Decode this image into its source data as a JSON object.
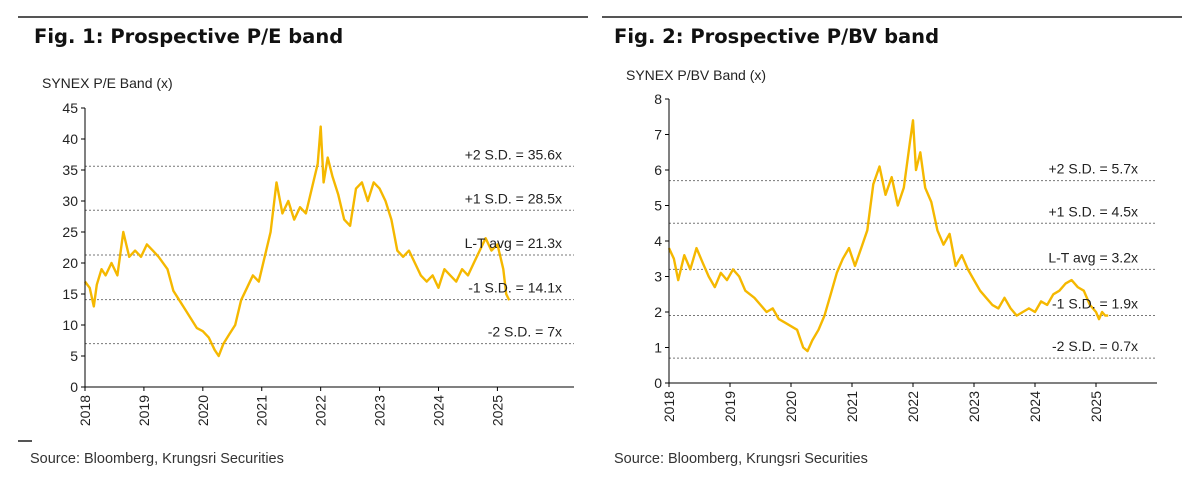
{
  "colors": {
    "series": "#F5B800",
    "band": "#777777",
    "axis": "#000000"
  },
  "figures": [
    {
      "title": "Fig. 1:  Prospective P/E band",
      "source": "Source: Bloomberg, Krungsri Securities"
    },
    {
      "title": "Fig. 2: Prospective P/BV band",
      "source": "Source: Bloomberg, Krungsri Securities"
    }
  ],
  "chart_data": [
    {
      "type": "line",
      "title": "Fig. 1:  Prospective P/E band",
      "ylabel": "SYNEX P/E  Band (x)",
      "xlabel": "",
      "ylim": [
        0,
        45
      ],
      "yticks": [
        "0",
        "5",
        "10",
        "15",
        "20",
        "25",
        "30",
        "35",
        "40",
        "45"
      ],
      "xlim": [
        2018,
        2026.3
      ],
      "xticks": [
        "2018",
        "2019",
        "2020",
        "2021",
        "2022",
        "2023",
        "2024",
        "2025"
      ],
      "grid": false,
      "bands": [
        {
          "label": "+2 S.D. = 35.6x",
          "value": 35.6
        },
        {
          "label": "+1 S.D. = 28.5x",
          "value": 28.5
        },
        {
          "label": "L-T avg = 21.3x",
          "value": 21.3
        },
        {
          "label": "-1 S.D. = 14.1x",
          "value": 14.1
        },
        {
          "label": "-2 S.D. = 7x",
          "value": 7
        }
      ],
      "series": [
        {
          "name": "P/E",
          "x": [
            2018.0,
            2018.08,
            2018.15,
            2018.2,
            2018.28,
            2018.35,
            2018.45,
            2018.55,
            2018.65,
            2018.75,
            2018.85,
            2018.95,
            2019.05,
            2019.15,
            2019.25,
            2019.4,
            2019.5,
            2019.6,
            2019.7,
            2019.8,
            2019.9,
            2020.0,
            2020.1,
            2020.2,
            2020.27,
            2020.35,
            2020.45,
            2020.55,
            2020.65,
            2020.75,
            2020.85,
            2020.95,
            2021.05,
            2021.15,
            2021.25,
            2021.35,
            2021.45,
            2021.55,
            2021.65,
            2021.75,
            2021.85,
            2021.95,
            2022.0,
            2022.05,
            2022.12,
            2022.2,
            2022.3,
            2022.4,
            2022.5,
            2022.6,
            2022.7,
            2022.8,
            2022.9,
            2023.0,
            2023.1,
            2023.2,
            2023.3,
            2023.4,
            2023.5,
            2023.6,
            2023.7,
            2023.8,
            2023.9,
            2024.0,
            2024.1,
            2024.2,
            2024.3,
            2024.4,
            2024.5,
            2024.6,
            2024.7,
            2024.8,
            2024.9,
            2025.0,
            2025.05,
            2025.1,
            2025.15,
            2025.2
          ],
          "values": [
            17,
            16,
            13,
            16.5,
            19,
            18,
            20,
            18,
            25,
            21,
            22,
            21,
            23,
            22,
            21,
            19,
            15.5,
            14,
            12.5,
            11,
            9.5,
            9,
            8,
            6,
            5,
            7,
            8.5,
            10,
            14,
            16,
            18,
            17,
            21,
            25,
            33,
            28,
            30,
            27,
            29,
            28,
            32,
            36,
            42,
            33,
            37,
            34,
            31,
            27,
            26,
            32,
            33,
            30,
            33,
            32,
            30,
            27,
            22,
            21,
            22,
            20,
            18,
            17,
            18,
            16,
            19,
            18,
            17,
            19,
            18,
            20,
            22,
            24,
            22,
            23,
            21,
            19,
            15,
            14
          ]
        }
      ]
    },
    {
      "type": "line",
      "title": "Fig. 2: Prospective P/BV band",
      "ylabel": "SYNEX P/BV Band (x)",
      "xlabel": "",
      "ylim": [
        0,
        8
      ],
      "yticks": [
        "0",
        "1",
        "2",
        "3",
        "4",
        "5",
        "6",
        "7",
        "8"
      ],
      "xlim": [
        2018,
        2026.0
      ],
      "xticks": [
        "2018",
        "2019",
        "2020",
        "2021",
        "2022",
        "2023",
        "2024",
        "2025"
      ],
      "grid": false,
      "bands": [
        {
          "label": "+2 S.D. = 5.7x",
          "value": 5.7
        },
        {
          "label": "+1 S.D. = 4.5x",
          "value": 4.5
        },
        {
          "label": "L-T avg = 3.2x",
          "value": 3.2
        },
        {
          "label": "-1 S.D. = 1.9x",
          "value": 1.9
        },
        {
          "label": "-2 S.D. = 0.7x",
          "value": 0.7
        }
      ],
      "series": [
        {
          "name": "P/BV",
          "x": [
            2018.0,
            2018.08,
            2018.15,
            2018.25,
            2018.35,
            2018.45,
            2018.55,
            2018.65,
            2018.75,
            2018.85,
            2018.95,
            2019.05,
            2019.15,
            2019.25,
            2019.4,
            2019.5,
            2019.6,
            2019.7,
            2019.8,
            2019.9,
            2020.0,
            2020.1,
            2020.2,
            2020.27,
            2020.35,
            2020.45,
            2020.55,
            2020.65,
            2020.75,
            2020.85,
            2020.95,
            2021.05,
            2021.15,
            2021.25,
            2021.35,
            2021.45,
            2021.55,
            2021.65,
            2021.75,
            2021.85,
            2021.95,
            2022.0,
            2022.05,
            2022.12,
            2022.2,
            2022.3,
            2022.4,
            2022.5,
            2022.6,
            2022.7,
            2022.8,
            2022.9,
            2023.0,
            2023.1,
            2023.2,
            2023.3,
            2023.4,
            2023.5,
            2023.6,
            2023.7,
            2023.8,
            2023.9,
            2024.0,
            2024.1,
            2024.2,
            2024.3,
            2024.4,
            2024.5,
            2024.6,
            2024.7,
            2024.8,
            2024.9,
            2025.0,
            2025.05,
            2025.1,
            2025.15,
            2025.2
          ],
          "values": [
            3.8,
            3.5,
            2.9,
            3.6,
            3.2,
            3.8,
            3.4,
            3.0,
            2.7,
            3.1,
            2.9,
            3.2,
            3.0,
            2.6,
            2.4,
            2.2,
            2.0,
            2.1,
            1.8,
            1.7,
            1.6,
            1.5,
            1.0,
            0.9,
            1.2,
            1.5,
            1.9,
            2.5,
            3.1,
            3.5,
            3.8,
            3.3,
            3.8,
            4.3,
            5.6,
            6.1,
            5.3,
            5.8,
            5.0,
            5.5,
            6.8,
            7.4,
            6.0,
            6.5,
            5.5,
            5.1,
            4.3,
            3.9,
            4.2,
            3.3,
            3.6,
            3.2,
            2.9,
            2.6,
            2.4,
            2.2,
            2.1,
            2.4,
            2.1,
            1.9,
            2.0,
            2.1,
            2.0,
            2.3,
            2.2,
            2.5,
            2.6,
            2.8,
            2.9,
            2.7,
            2.6,
            2.2,
            2.0,
            1.8,
            2.0,
            1.9,
            1.9
          ]
        }
      ]
    }
  ]
}
